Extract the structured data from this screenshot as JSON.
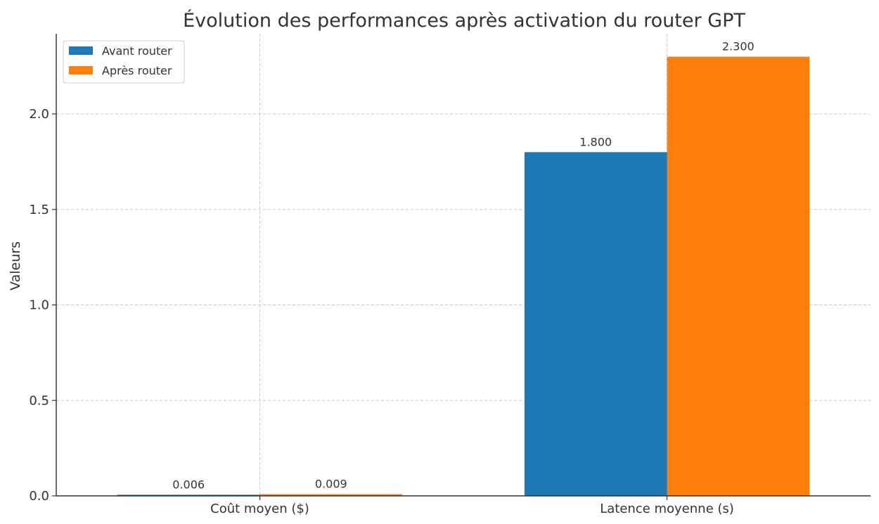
{
  "chart_data": {
    "type": "bar",
    "title": "Évolution des performances après activation du router GPT",
    "xlabel": "",
    "ylabel": "Valeurs",
    "categories": [
      "Coût moyen ($)",
      "Latence moyenne (s)"
    ],
    "series": [
      {
        "name": "Avant router",
        "values": [
          0.006,
          1.8
        ],
        "labels": [
          "0.006",
          "1.800"
        ],
        "color": "#1f77b4"
      },
      {
        "name": "Après router",
        "values": [
          0.009,
          2.3
        ],
        "labels": [
          "0.009",
          "2.300"
        ],
        "color": "#ff7f0e"
      }
    ],
    "ylim": [
      0,
      2.42
    ],
    "yticks": [
      0.0,
      0.5,
      1.0,
      1.5,
      2.0
    ],
    "ytick_labels": [
      "0.0",
      "0.5",
      "1.0",
      "1.5",
      "2.0"
    ],
    "grid": true,
    "legend_position": "top-left"
  }
}
